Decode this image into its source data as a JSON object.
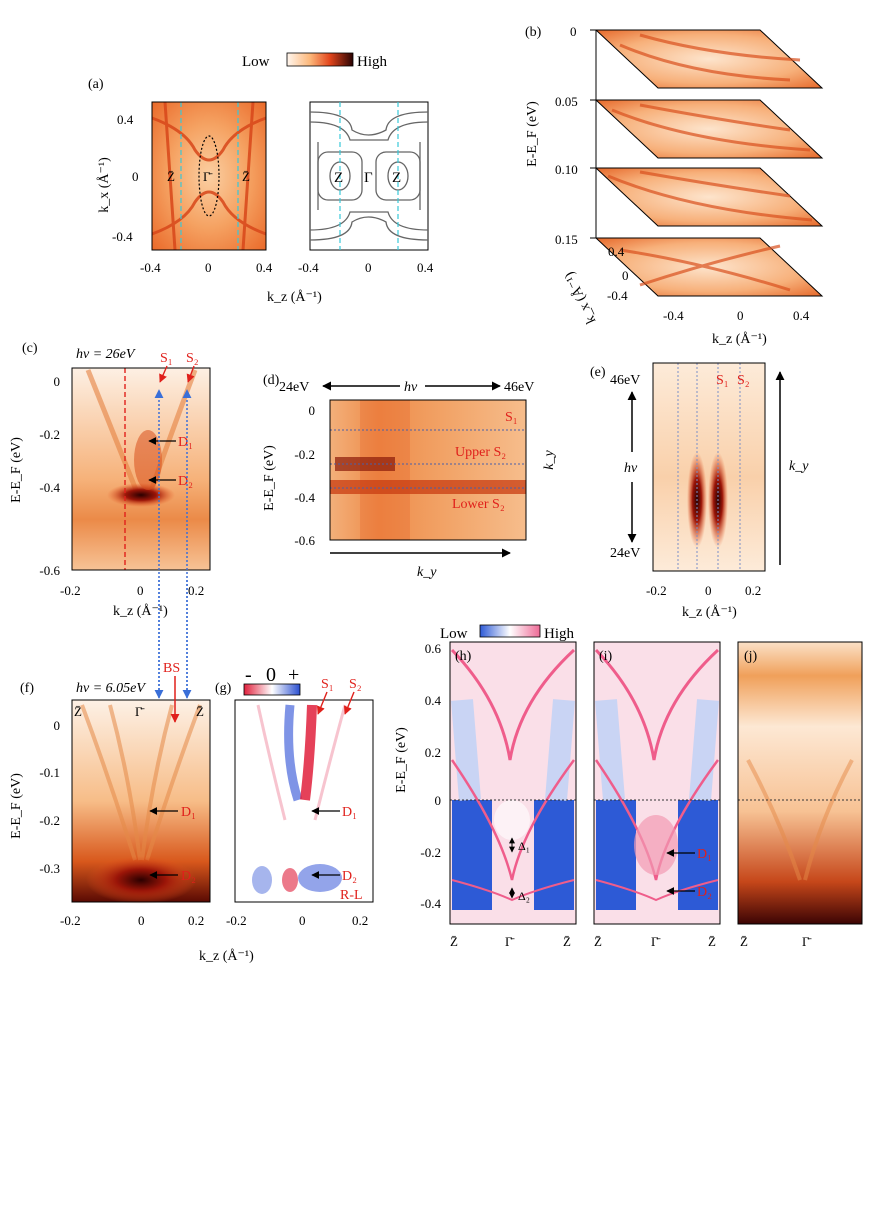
{
  "colorbars": {
    "top": {
      "low": "Low",
      "high": "High"
    },
    "sign": {
      "minus": "-",
      "zero": "0",
      "plus": "+"
    },
    "bwr": {
      "low": "Low",
      "high": "High"
    }
  },
  "colors": {
    "red_label": "#e0201b",
    "arrow_blue": "#3a6fd8",
    "cyan_dash": "#38c8d8",
    "orange_mid": "#f08a3a",
    "orange_light": "#fde3cc",
    "map_dark": "#3a0505",
    "bwr_blue": "#2d5ad6",
    "bwr_pink": "#f06a96"
  },
  "panel_a": {
    "label": "(a)",
    "ylabel": "k_x (Å⁻¹)",
    "xlabel": "k_z (Å⁻¹)",
    "yticks": [
      "0.4",
      "0",
      "-0.4"
    ],
    "xticks_left": [
      "-0.4",
      "0",
      "0.4"
    ],
    "xticks_right": [
      "-0.4",
      "0",
      "0.4"
    ],
    "points_left": [
      "Z̄",
      "Γ̄",
      "Z̄"
    ],
    "points_right": [
      "Z",
      "Γ",
      "Z"
    ]
  },
  "panel_b": {
    "label": "(b)",
    "ylabel": "E-E_F (eV)",
    "energy_ticks": [
      "0",
      "0.05",
      "0.10",
      "0.15"
    ],
    "kx_ticks": [
      "0.4",
      "0",
      "-0.4"
    ],
    "kx_label": "k_x (Å⁻¹)",
    "kz_ticks": [
      "-0.4",
      "0",
      "0.4"
    ],
    "kz_label": "k_z (Å⁻¹)"
  },
  "panel_c": {
    "label": "(c)",
    "photon": "hv = 26eV",
    "s1": "S₁",
    "s2": "S₂",
    "d1": "D₁",
    "d2": "D₂",
    "ylabel": "E-E_F (eV)",
    "yticks": [
      "0",
      "-0.2",
      "-0.4",
      "-0.6"
    ],
    "xticks": [
      "-0.2",
      "0",
      "0.2"
    ],
    "xlabel": "k_z (Å⁻¹)"
  },
  "panel_d": {
    "label": "(d)",
    "hv_left": "24eV",
    "hv": "hv",
    "hv_right": "46eV",
    "s1": "S₁",
    "upper": "Upper S₂",
    "lower": "Lower S₂",
    "ylabel": "E-E_F (eV)",
    "yticks": [
      "0",
      "-0.2",
      "-0.4",
      "-0.6"
    ],
    "xlabel": "k_y",
    "side_label": "k_y"
  },
  "panel_e": {
    "label": "(e)",
    "hv_top": "46eV",
    "hv": "hv",
    "hv_bottom": "24eV",
    "s1": "S₁",
    "s2": "S₂",
    "xticks": [
      "-0.2",
      "0",
      "0.2"
    ],
    "xlabel": "k_z (Å⁻¹)",
    "ky": "k_y"
  },
  "panel_f": {
    "label": "(f)",
    "photon": "hv = 6.05eV",
    "bs": "BS",
    "points": [
      "Z̄",
      "Γ̄",
      "Z̄"
    ],
    "d1": "D₁",
    "d2": "D₂",
    "ylabel": "E-E_F (eV)",
    "yticks": [
      "0",
      "-0.1",
      "-0.2",
      "-0.3"
    ],
    "xticks": [
      "-0.2",
      "0",
      "0.2"
    ]
  },
  "panel_g": {
    "label": "(g)",
    "s1": "S₁",
    "s2": "S₂",
    "d1": "D₁",
    "d2": "D₂",
    "rl": "R-L",
    "xticks": [
      "-0.2",
      "0",
      "0.2"
    ],
    "xlabel": "k_z (Å⁻¹)"
  },
  "panel_h": {
    "label": "(h)",
    "ylabel": "E-E_F (eV)",
    "yticks": [
      "0.6",
      "0.4",
      "0.2",
      "0",
      "-0.2",
      "-0.4"
    ],
    "delta1": "Δ₁",
    "delta2": "Δ₂",
    "points": [
      "Z̄",
      "Γ̄",
      "Z̄"
    ]
  },
  "panel_i": {
    "label": "(i)",
    "d1": "D₁",
    "d2": "D₂",
    "points": [
      "Z̄",
      "Γ̄",
      "Z̄"
    ]
  },
  "panel_j": {
    "label": "(j)",
    "points": [
      "Z̄",
      "Γ̄"
    ]
  }
}
